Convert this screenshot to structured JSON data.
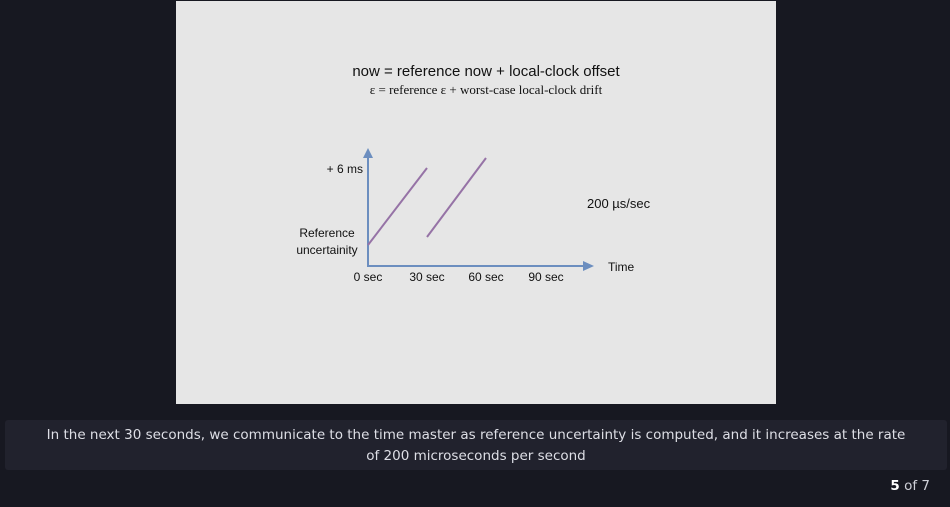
{
  "slide": {
    "formula_line1": "now = reference now + local-clock offset",
    "formula_line2": "ε  = reference ε + worst-case local-clock drift",
    "y_tick_label": "+ 6 ms",
    "y_label_line1": "Reference",
    "y_label_line2": "uncertainity",
    "x_tick_labels": [
      "0 sec",
      "30 sec",
      "60 sec",
      "90 sec"
    ],
    "x_axis_label": "Time",
    "rate_label": "200 µs/sec",
    "colors": {
      "axis": "#6c8ebf",
      "series": "#9673a6",
      "background": "#e6e6e6"
    }
  },
  "caption": {
    "text": "In the next 30 seconds, we communicate to the time master as reference uncertainty is computed, and it increases at the rate of 200 microseconds per second"
  },
  "pager": {
    "current": "5",
    "separator": "of",
    "total": "7"
  }
}
